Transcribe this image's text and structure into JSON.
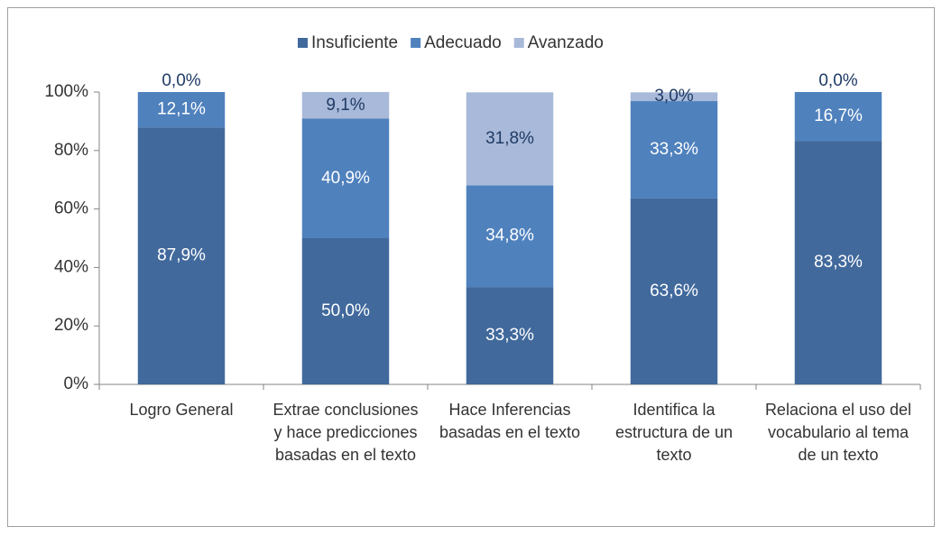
{
  "chart_data": {
    "type": "stacked_bar",
    "categories": [
      "Logro General",
      "Extrae conclusiones y hace predicciones basadas en el texto",
      "Hace Inferencias basadas en el texto",
      "Identifica la estructura de un texto",
      "Relaciona el uso del vocabulario al tema de un texto"
    ],
    "series": [
      {
        "name": "Insuficiente",
        "color": "#41699c",
        "values": [
          87.9,
          50.0,
          33.3,
          63.6,
          83.3
        ],
        "value_labels": [
          "87,9%",
          "50,0%",
          "33,3%",
          "63,6%",
          "83,3%"
        ]
      },
      {
        "name": "Adecuado",
        "color": "#4f81bd",
        "values": [
          12.1,
          40.9,
          34.8,
          33.3,
          16.7
        ],
        "value_labels": [
          "12,1%",
          "40,9%",
          "34,8%",
          "33,3%",
          "16,7%"
        ]
      },
      {
        "name": "Avanzado",
        "color": "#a8b9d9",
        "values": [
          0.0,
          9.1,
          31.8,
          3.0,
          0.0
        ],
        "value_labels": [
          "0,0%",
          "9,1%",
          "31,8%",
          "3,0%",
          "0,0%"
        ]
      }
    ],
    "ylim": [
      0,
      100
    ],
    "yticks": [
      {
        "value": 0,
        "label": "0%"
      },
      {
        "value": 20,
        "label": "20%"
      },
      {
        "value": 40,
        "label": "40%"
      },
      {
        "value": 60,
        "label": "60%"
      },
      {
        "value": 80,
        "label": "80%"
      },
      {
        "value": 100,
        "label": "100%"
      }
    ],
    "legend": "top"
  }
}
